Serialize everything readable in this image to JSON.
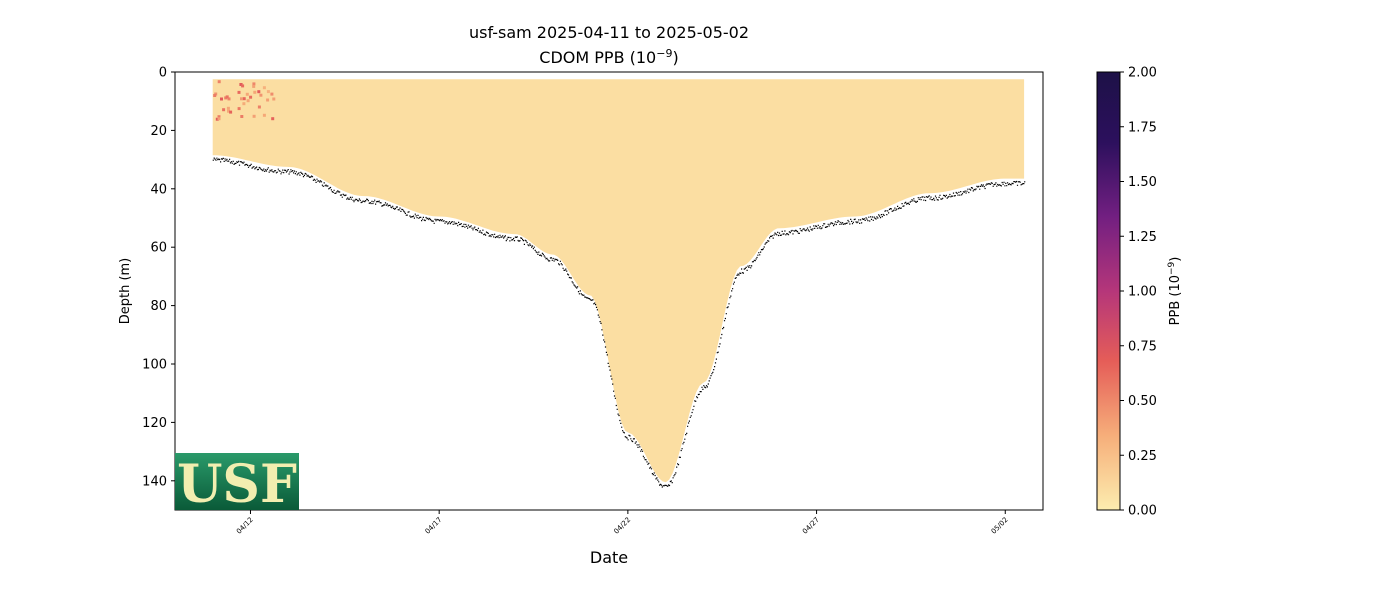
{
  "chart_data": {
    "type": "heatmap",
    "title_line1": "usf-sam 2025-04-11 to 2025-05-02",
    "title_line2": "CDOM PPB (10",
    "title_line2_exp": "−9",
    "title_line2_end": ")",
    "xlabel": "Date",
    "ylabel": "Depth (m)",
    "colorbar_label": "PPB (10",
    "colorbar_label_exp": "−9",
    "colorbar_label_end": ")",
    "colormap": "magma_r",
    "colors": [
      "#fcedaf",
      "#f6ae7a",
      "#e55d58",
      "#b5367a",
      "#721f81",
      "#2c105d",
      "#1d1147"
    ],
    "ylim": [
      150,
      0
    ],
    "xlim": [
      "2025-04-10",
      "2025-05-03"
    ],
    "clim": [
      0,
      2
    ],
    "x_ticks": [
      "04/12",
      "04/17",
      "04/22",
      "04/27",
      "05/02"
    ],
    "y_ticks": [
      "0",
      "20",
      "40",
      "60",
      "80",
      "100",
      "120",
      "140"
    ],
    "colorbar_ticks": [
      "0.00",
      "0.25",
      "0.50",
      "0.75",
      "1.00",
      "1.25",
      "1.50",
      "1.75",
      "2.00"
    ],
    "grid": false,
    "typical_value": 0.08,
    "surface_depth": 2.5,
    "bottom_profile": [
      {
        "date": "2025-04-11",
        "depth": 30
      },
      {
        "date": "2025-04-13",
        "depth": 34
      },
      {
        "date": "2025-04-15",
        "depth": 44
      },
      {
        "date": "2025-04-17",
        "depth": 51
      },
      {
        "date": "2025-04-19",
        "depth": 57
      },
      {
        "date": "2025-04-20",
        "depth": 64
      },
      {
        "date": "2025-04-21",
        "depth": 78
      },
      {
        "date": "2025-04-22",
        "depth": 125
      },
      {
        "date": "2025-04-23",
        "depth": 142
      },
      {
        "date": "2025-04-24",
        "depth": 108
      },
      {
        "date": "2025-04-25",
        "depth": 68
      },
      {
        "date": "2025-04-26",
        "depth": 55
      },
      {
        "date": "2025-04-28",
        "depth": 51
      },
      {
        "date": "2025-04-30",
        "depth": 43
      },
      {
        "date": "2025-05-02",
        "depth": 38
      }
    ]
  },
  "logo": {
    "text": "USF",
    "bg": "#0d6b45",
    "fg": "#f2eeb0"
  }
}
